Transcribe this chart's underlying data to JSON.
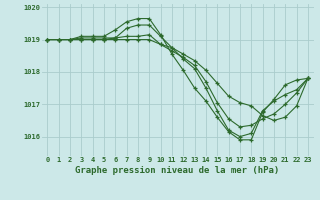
{
  "background_color": "#cce8e8",
  "grid_color": "#aacccc",
  "line_color": "#2d6a2d",
  "title": "Graphe pression niveau de la mer (hPa)",
  "ylim": [
    1015.4,
    1020.1
  ],
  "yticks": [
    1016,
    1017,
    1018,
    1019,
    1020
  ],
  "xticks": [
    0,
    1,
    2,
    3,
    4,
    5,
    6,
    7,
    8,
    9,
    10,
    11,
    12,
    13,
    14,
    15,
    16,
    17,
    18,
    19,
    20,
    21,
    22,
    23
  ],
  "series": [
    [
      1019.0,
      1019.0,
      1019.0,
      1019.1,
      1019.1,
      1019.1,
      1019.3,
      1019.55,
      1019.65,
      1019.65,
      1019.15,
      1018.55,
      1018.05,
      1017.5,
      1017.1,
      1016.6,
      1016.15,
      1015.9,
      1015.9,
      1016.75,
      1017.15,
      1017.6,
      1017.75,
      1017.8
    ],
    [
      1019.0,
      1019.0,
      1019.0,
      1019.05,
      1019.05,
      1019.05,
      1019.05,
      1019.35,
      1019.45,
      1019.45,
      1019.1,
      1018.75,
      1018.4,
      1018.1,
      1017.5,
      1016.8,
      1016.2,
      1016.0,
      1016.1,
      1016.8,
      1017.1,
      1017.3,
      1017.45,
      1017.8
    ],
    [
      1019.0,
      1019.0,
      1019.0,
      1019.0,
      1019.0,
      1019.0,
      1019.05,
      1019.1,
      1019.1,
      1019.15,
      1018.85,
      1018.65,
      1018.45,
      1018.2,
      1017.7,
      1017.05,
      1016.55,
      1016.3,
      1016.35,
      1016.55,
      1016.7,
      1017.0,
      1017.35,
      1017.8
    ],
    [
      1019.0,
      1019.0,
      1019.0,
      1019.0,
      1019.0,
      1019.0,
      1019.0,
      1019.0,
      1019.0,
      1019.0,
      1018.85,
      1018.75,
      1018.55,
      1018.35,
      1018.05,
      1017.65,
      1017.25,
      1017.05,
      1016.95,
      1016.65,
      1016.5,
      1016.6,
      1016.95,
      1017.8
    ]
  ]
}
